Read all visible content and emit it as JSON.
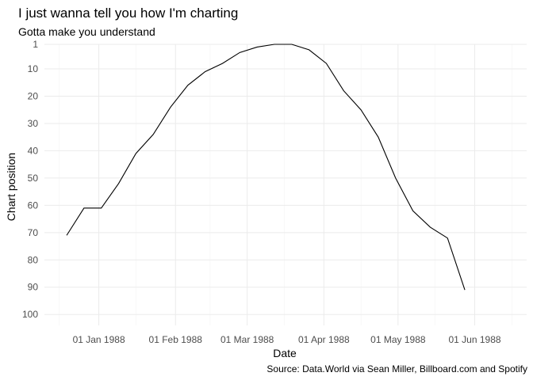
{
  "chart_data": {
    "type": "line",
    "title": "I just wanna tell you how I'm charting",
    "subtitle": "Gotta make you understand",
    "xlabel": "Date",
    "ylabel": "Chart position",
    "caption": "Source: Data.World via Sean Miller, Billboard.com and Spotify",
    "x_scale": "date",
    "y_reversed": true,
    "xlim": [
      "1987-12-10",
      "1988-06-22"
    ],
    "ylim": [
      1,
      104
    ],
    "x_ticks": [
      {
        "value": "1988-01-01",
        "label": "01 Jan 1988"
      },
      {
        "value": "1988-02-01",
        "label": "01 Feb 1988"
      },
      {
        "value": "1988-03-01",
        "label": "01 Mar 1988"
      },
      {
        "value": "1988-04-01",
        "label": "01 Apr 1988"
      },
      {
        "value": "1988-05-01",
        "label": "01 May 1988"
      },
      {
        "value": "1988-06-01",
        "label": "01 Jun 1988"
      }
    ],
    "y_ticks": [
      1,
      10,
      20,
      30,
      40,
      50,
      60,
      70,
      80,
      90,
      100
    ],
    "grid": true,
    "series": [
      {
        "points": [
          {
            "x": "1987-12-19",
            "y": 71
          },
          {
            "x": "1987-12-26",
            "y": 61
          },
          {
            "x": "1988-01-02",
            "y": 61
          },
          {
            "x": "1988-01-09",
            "y": 52
          },
          {
            "x": "1988-01-16",
            "y": 41
          },
          {
            "x": "1988-01-23",
            "y": 34
          },
          {
            "x": "1988-01-30",
            "y": 24
          },
          {
            "x": "1988-02-06",
            "y": 16
          },
          {
            "x": "1988-02-13",
            "y": 11
          },
          {
            "x": "1988-02-20",
            "y": 8
          },
          {
            "x": "1988-02-27",
            "y": 4
          },
          {
            "x": "1988-03-05",
            "y": 2
          },
          {
            "x": "1988-03-12",
            "y": 1
          },
          {
            "x": "1988-03-19",
            "y": 1
          },
          {
            "x": "1988-03-26",
            "y": 3
          },
          {
            "x": "1988-04-02",
            "y": 8
          },
          {
            "x": "1988-04-09",
            "y": 18
          },
          {
            "x": "1988-04-16",
            "y": 25
          },
          {
            "x": "1988-04-23",
            "y": 35
          },
          {
            "x": "1988-04-30",
            "y": 50
          },
          {
            "x": "1988-05-07",
            "y": 62
          },
          {
            "x": "1988-05-14",
            "y": 68
          },
          {
            "x": "1988-05-21",
            "y": 72
          },
          {
            "x": "1988-05-28",
            "y": 91
          }
        ]
      }
    ]
  }
}
